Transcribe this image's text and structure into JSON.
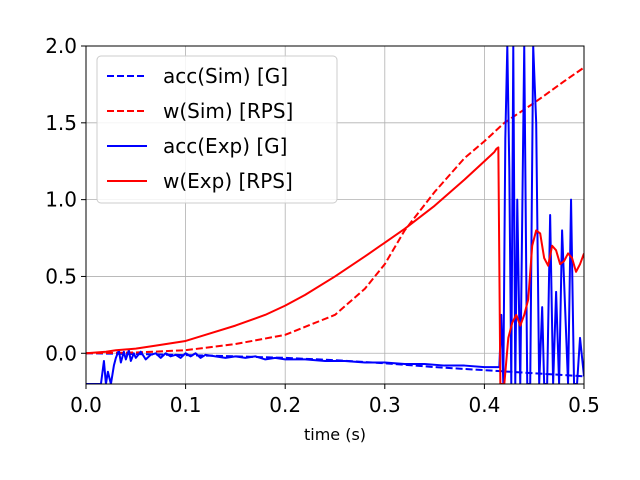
{
  "chart_data": {
    "type": "line",
    "title": "",
    "xlabel": "time (s)",
    "ylabel": "",
    "xlim": [
      0.0,
      0.5
    ],
    "ylim": [
      -0.2,
      2.0
    ],
    "xticks": [
      "0.0",
      "0.1",
      "0.2",
      "0.3",
      "0.4",
      "0.5"
    ],
    "yticks": [
      "0.0",
      "0.5",
      "1.0",
      "1.5",
      "2.0"
    ],
    "grid": true,
    "legend_position": "top-left",
    "series": [
      {
        "name": "acc(Sim) [G]",
        "color": "#0000ff",
        "style": "dashed",
        "x": [
          0.0,
          0.05,
          0.1,
          0.15,
          0.2,
          0.25,
          0.3,
          0.35,
          0.4,
          0.45,
          0.5
        ],
        "y": [
          0.0,
          -0.005,
          -0.012,
          -0.02,
          -0.03,
          -0.045,
          -0.065,
          -0.09,
          -0.11,
          -0.13,
          -0.15
        ]
      },
      {
        "name": "w(Sim) [RPS]",
        "color": "#ff0000",
        "style": "dashed",
        "x": [
          0.0,
          0.05,
          0.1,
          0.15,
          0.2,
          0.25,
          0.28,
          0.3,
          0.32,
          0.35,
          0.38,
          0.4,
          0.42,
          0.45,
          0.48,
          0.5
        ],
        "y": [
          0.0,
          0.005,
          0.02,
          0.06,
          0.12,
          0.25,
          0.42,
          0.58,
          0.8,
          1.05,
          1.27,
          1.38,
          1.5,
          1.63,
          1.77,
          1.86
        ]
      },
      {
        "name": "acc(Exp) [G]",
        "color": "#0000ff",
        "style": "solid",
        "x": [
          0.0,
          0.015,
          0.018,
          0.02,
          0.022,
          0.025,
          0.028,
          0.03,
          0.033,
          0.035,
          0.038,
          0.04,
          0.043,
          0.045,
          0.048,
          0.05,
          0.055,
          0.06,
          0.065,
          0.07,
          0.075,
          0.08,
          0.085,
          0.09,
          0.095,
          0.1,
          0.105,
          0.11,
          0.115,
          0.12,
          0.13,
          0.14,
          0.15,
          0.16,
          0.17,
          0.18,
          0.19,
          0.2,
          0.22,
          0.24,
          0.26,
          0.28,
          0.3,
          0.32,
          0.34,
          0.36,
          0.38,
          0.4,
          0.41,
          0.415,
          0.417,
          0.419,
          0.421,
          0.423,
          0.425,
          0.427,
          0.429,
          0.431,
          0.433,
          0.436,
          0.44,
          0.443,
          0.446,
          0.449,
          0.452,
          0.455,
          0.458,
          0.46,
          0.463,
          0.466,
          0.469,
          0.472,
          0.475,
          0.478,
          0.481,
          0.484,
          0.487,
          0.49,
          0.493,
          0.496,
          0.5
        ],
        "y": [
          -0.2,
          -0.2,
          -0.05,
          -0.2,
          -0.12,
          -0.2,
          -0.08,
          -0.03,
          0.02,
          -0.06,
          0.01,
          -0.04,
          0.02,
          -0.05,
          0.0,
          -0.03,
          0.01,
          -0.04,
          -0.01,
          0.0,
          -0.03,
          0.0,
          -0.02,
          -0.01,
          -0.03,
          0.0,
          -0.02,
          0.0,
          -0.03,
          -0.01,
          -0.02,
          -0.03,
          -0.02,
          -0.03,
          -0.02,
          -0.04,
          -0.03,
          -0.04,
          -0.04,
          -0.05,
          -0.05,
          -0.06,
          -0.06,
          -0.07,
          -0.07,
          -0.08,
          -0.08,
          -0.09,
          -0.09,
          -0.09,
          0.25,
          -0.2,
          1.4,
          2.0,
          1.2,
          -0.2,
          2.0,
          -0.2,
          1.0,
          -0.2,
          2.0,
          -0.2,
          -0.2,
          2.0,
          1.5,
          -0.2,
          0.3,
          -0.2,
          -0.2,
          0.9,
          -0.2,
          0.4,
          -0.2,
          0.8,
          0.3,
          -0.2,
          1.0,
          -0.2,
          -0.2,
          0.1,
          -0.15
        ]
      },
      {
        "name": "w(Exp) [RPS]",
        "color": "#ff0000",
        "style": "solid",
        "x": [
          0.0,
          0.02,
          0.03,
          0.05,
          0.07,
          0.1,
          0.12,
          0.15,
          0.18,
          0.2,
          0.22,
          0.25,
          0.28,
          0.3,
          0.32,
          0.35,
          0.38,
          0.4,
          0.41,
          0.412,
          0.414,
          0.416,
          0.42,
          0.424,
          0.428,
          0.432,
          0.436,
          0.44,
          0.444,
          0.448,
          0.452,
          0.456,
          0.46,
          0.464,
          0.468,
          0.472,
          0.476,
          0.48,
          0.484,
          0.488,
          0.492,
          0.496,
          0.5
        ],
        "y": [
          0.0,
          0.01,
          0.02,
          0.03,
          0.05,
          0.08,
          0.12,
          0.18,
          0.25,
          0.31,
          0.38,
          0.5,
          0.63,
          0.72,
          0.81,
          0.96,
          1.13,
          1.25,
          1.31,
          1.33,
          1.34,
          -0.2,
          -0.2,
          0.1,
          0.2,
          0.25,
          0.18,
          0.25,
          0.35,
          0.7,
          0.8,
          0.78,
          0.62,
          0.57,
          0.7,
          0.67,
          0.58,
          0.6,
          0.65,
          0.62,
          0.53,
          0.58,
          0.65
        ]
      }
    ]
  }
}
